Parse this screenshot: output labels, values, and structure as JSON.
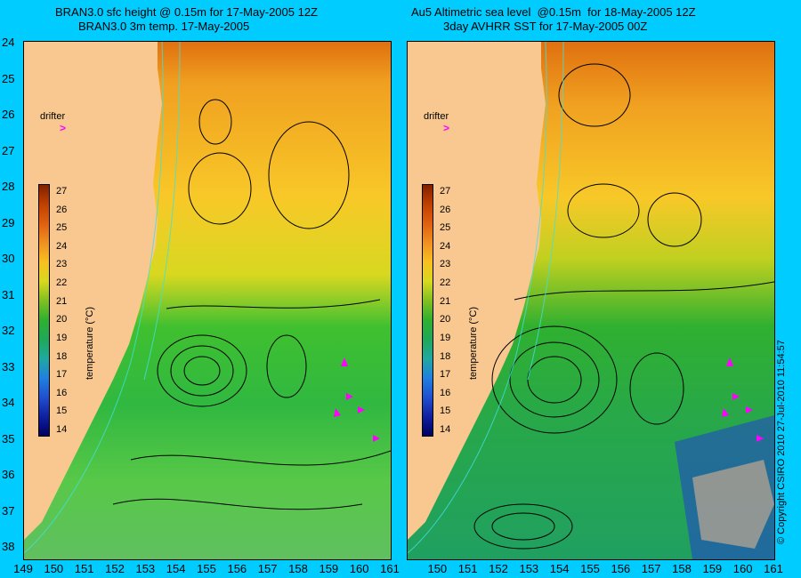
{
  "left_panel": {
    "title_line1": "BRAN3.0 sfc height @ 0.15m for 17-May-2005 12Z",
    "title_line2": "BRAN3.0 3m temp. 17-May-2005",
    "colorbar_label": "temperature (°C)",
    "drifter_label": "drifter"
  },
  "right_panel": {
    "title_line1": "Au5 Altimetric sea level  @0.15m  for 18-May-2005 12Z",
    "title_line2": "3day AVHRR SST for 17-May-2005 00Z",
    "colorbar_label": "temperature (°C)",
    "drifter_label": "drifter"
  },
  "y_ticks": [
    "24",
    "25",
    "26",
    "27",
    "28",
    "29",
    "30",
    "31",
    "32",
    "33",
    "34",
    "35",
    "36",
    "37",
    "38"
  ],
  "x_ticks_left": [
    "149",
    "150",
    "151",
    "152",
    "153",
    "154",
    "155",
    "156",
    "157",
    "158",
    "159",
    "160",
    "161"
  ],
  "x_ticks_right": [
    "150",
    "151",
    "152",
    "153",
    "154",
    "155",
    "156",
    "157",
    "158",
    "159",
    "160",
    "161"
  ],
  "colorbar_ticks": [
    "27",
    "26",
    "25",
    "24",
    "23",
    "22",
    "21",
    "20",
    "19",
    "18",
    "17",
    "16",
    "15",
    "14"
  ],
  "copyright": "© Copyright CSIRO 2010   27-Jul-2010 11:54:57",
  "colors": {
    "background": "#00ccff",
    "land": "#f8c890",
    "drifter": "#ff00ff"
  }
}
